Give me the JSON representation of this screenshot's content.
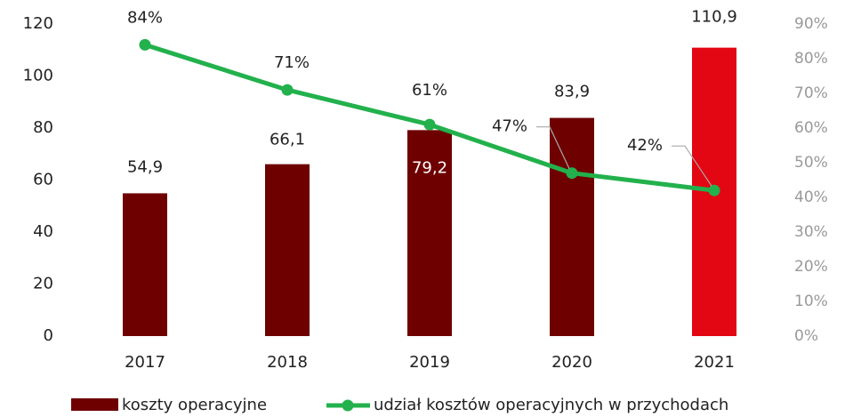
{
  "chart_data": {
    "type": "bar",
    "categories": [
      "2017",
      "2018",
      "2019",
      "2020",
      "2021"
    ],
    "series": [
      {
        "name": "koszty operacyjne",
        "type": "bar",
        "colors": [
          "#6e0000",
          "#6e0000",
          "#6e0000",
          "#6e0000",
          "#e30613"
        ],
        "values": [
          54.9,
          66.1,
          79.2,
          83.9,
          110.9
        ],
        "value_labels": [
          "54,9",
          "66,1",
          "79,2",
          "83,9",
          "110,9"
        ]
      },
      {
        "name": "udział kosztów operacyjnych w przychodach",
        "type": "line",
        "axis": "y2",
        "color": "#22b14c",
        "values": [
          84,
          71,
          61,
          47,
          42
        ],
        "value_labels": [
          "84%",
          "71%",
          "61%",
          "47%",
          "42%"
        ]
      }
    ],
    "ylim": [
      0,
      120
    ],
    "yticks": [
      0,
      20,
      40,
      60,
      80,
      100,
      120
    ],
    "y2lim": [
      0,
      90
    ],
    "y2ticks": [
      {
        "value": 0,
        "label": "0%"
      },
      {
        "value": 10,
        "label": "10%"
      },
      {
        "value": 20,
        "label": "20%"
      },
      {
        "value": 30,
        "label": "30%"
      },
      {
        "value": 40,
        "label": "40%"
      },
      {
        "value": 50,
        "label": "50%"
      },
      {
        "value": 60,
        "label": "60%"
      },
      {
        "value": 70,
        "label": "70%"
      },
      {
        "value": 80,
        "label": "80%"
      },
      {
        "value": 90,
        "label": "90%"
      }
    ],
    "legend": "bottom"
  }
}
